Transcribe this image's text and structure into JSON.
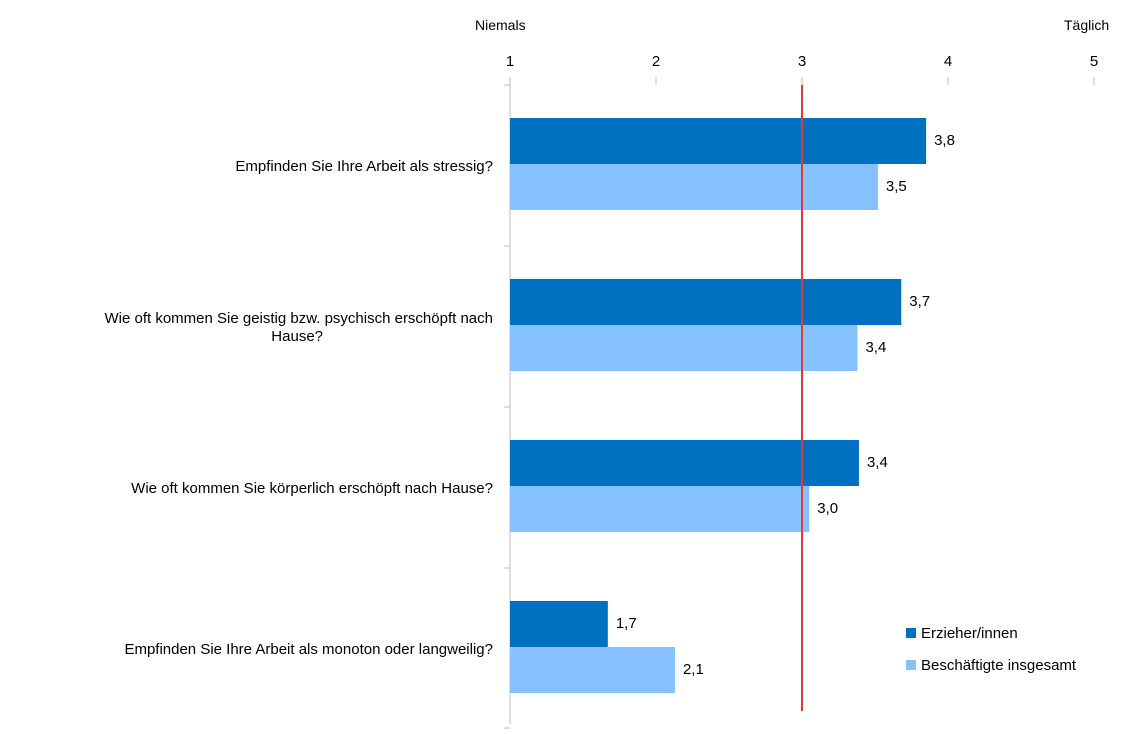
{
  "scale_labels": {
    "left": "Niemals",
    "right": "Täglich"
  },
  "legend": [
    {
      "label": "Erzieher/innen"
    },
    {
      "label": "Beschäftigte insgesamt"
    }
  ],
  "colors": {
    "erzieher": "#0070C0",
    "gesamt": "#85C2FF",
    "reference_line": "#E53935",
    "axis": "#BFBFBF"
  },
  "chart_data": {
    "type": "bar",
    "orientation": "horizontal",
    "categories": [
      [
        "Empfinden Sie Ihre Arbeit als stressig?"
      ],
      [
        "Wie oft kommen Sie geistig bzw. psychisch erschöpft nach",
        "Hause?"
      ],
      [
        "Wie oft kommen Sie körperlich erschöpft nach Hause?"
      ],
      [
        "Empfinden Sie Ihre Arbeit als monoton oder langweilig?"
      ]
    ],
    "series": [
      {
        "name": "Erzieher/innen",
        "values": [
          3.85,
          3.68,
          3.39,
          1.67
        ],
        "labels": [
          "3,8",
          "3,7",
          "3,4",
          "1,7"
        ]
      },
      {
        "name": "Beschäftigte insgesamt",
        "values": [
          3.52,
          3.38,
          3.05,
          2.13
        ],
        "labels": [
          "3,5",
          "3,4",
          "3,0",
          "2,1"
        ]
      }
    ],
    "xlim": [
      1,
      5
    ],
    "xticks": [
      "1",
      "2",
      "3",
      "4",
      "5"
    ],
    "reference_line": 3,
    "grid": false,
    "legend_position": "bottom-right"
  }
}
